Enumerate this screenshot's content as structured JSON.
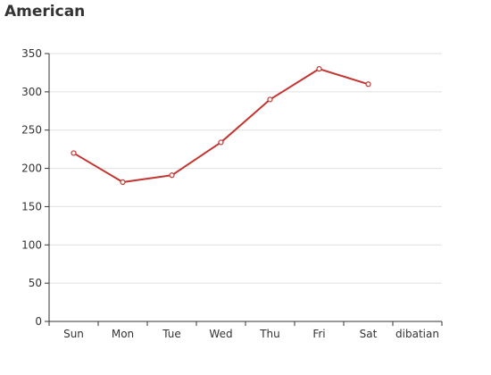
{
  "chart_data": {
    "type": "line",
    "title": "American",
    "categories": [
      "Sun",
      "Mon",
      "Tue",
      "Wed",
      "Thu",
      "Fri",
      "Sat",
      "dibatian"
    ],
    "series": [
      {
        "values": [
          220,
          182,
          191,
          234,
          290,
          330,
          310,
          null
        ]
      }
    ],
    "ylim": [
      0,
      350
    ],
    "yticks": [
      0,
      50,
      100,
      150,
      200,
      250,
      300,
      350
    ],
    "grid": true,
    "legend": "none",
    "colors": {
      "line": "#c23531",
      "marker_fill": "#ffffff",
      "grid": "#e0e0e0",
      "axis": "#333333",
      "text": "#333333"
    }
  }
}
